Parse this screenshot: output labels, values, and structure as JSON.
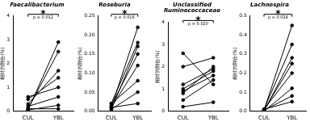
{
  "chart_data": [
    {
      "type": "line",
      "title": "Faecalibacterium",
      "y_label": "相対的割合(%)",
      "categories": [
        "CUL",
        "YBL"
      ],
      "series": [
        {
          "color": "#000000",
          "values": [
            0.05,
            2.9
          ]
        },
        {
          "color": "#000000",
          "values": [
            0.1,
            2.5
          ]
        },
        {
          "color": "#000000",
          "values": [
            0.3,
            1.7
          ]
        },
        {
          "color": "#000000",
          "values": [
            0.5,
            1.4
          ]
        },
        {
          "color": "#000000",
          "values": [
            0.6,
            1.0
          ]
        },
        {
          "color": "#000000",
          "values": [
            0.2,
            0.6
          ]
        },
        {
          "color": "#000000",
          "values": [
            0.05,
            0.25
          ]
        },
        {
          "color": "#000000",
          "values": [
            0.1,
            0.1
          ]
        }
      ],
      "ylim": [
        0,
        4
      ],
      "yticks": [
        0,
        1,
        2,
        3,
        4
      ],
      "grid": false,
      "marker": "circle",
      "annotations": [
        "*",
        "p = 0.012"
      ]
    },
    {
      "type": "line",
      "title": "Roseburia",
      "y_label": "相対的割合(%)",
      "categories": [
        "CUL",
        "YBL"
      ],
      "series": [
        {
          "color": "#000000",
          "values": [
            0.01,
            0.22
          ]
        },
        {
          "color": "#000000",
          "values": [
            0.02,
            0.18
          ]
        },
        {
          "color": "#000000",
          "values": [
            0.005,
            0.17
          ]
        },
        {
          "color": "#000000",
          "values": [
            0.015,
            0.15
          ]
        },
        {
          "color": "#000000",
          "values": [
            0.01,
            0.12
          ]
        },
        {
          "color": "#000000",
          "values": [
            0.02,
            0.08
          ]
        },
        {
          "color": "#000000",
          "values": [
            0.005,
            0.05
          ]
        },
        {
          "color": "#000000",
          "values": [
            0.01,
            0.02
          ]
        }
      ],
      "ylim": [
        0,
        0.25
      ],
      "yticks": [
        {
          "value": 0,
          "label": "0.00"
        },
        {
          "value": 0.05,
          "label": "0.05"
        },
        {
          "value": 0.1,
          "label": "0.10"
        },
        {
          "value": 0.15,
          "label": "0.15"
        },
        {
          "value": 0.2,
          "label": "0.20"
        },
        {
          "value": 0.25,
          "label": "0.25"
        }
      ],
      "grid": false,
      "marker": "circle",
      "annotations": [
        "*",
        "p = 0.016"
      ]
    },
    {
      "type": "line",
      "title": [
        "Unclassified",
        "Ruminococcaceae"
      ],
      "y_label": "相対的割合(%)",
      "categories": [
        "CUL",
        "YBL"
      ],
      "series": [
        {
          "color": "#000000",
          "values": [
            2.6,
            1.2
          ]
        },
        {
          "color": "#000000",
          "values": [
            2.0,
            2.4
          ]
        },
        {
          "color": "#000000",
          "values": [
            1.2,
            1.9
          ]
        },
        {
          "color": "#000000",
          "values": [
            1.0,
            1.8
          ]
        },
        {
          "color": "#000000",
          "values": [
            0.9,
            1.6
          ]
        },
        {
          "color": "#000000",
          "values": [
            0.8,
            2.0
          ]
        },
        {
          "color": "#000000",
          "values": [
            0.5,
            1.4
          ]
        },
        {
          "color": "#000000",
          "values": [
            0.2,
            0.4
          ]
        }
      ],
      "ylim": [
        0,
        4
      ],
      "yticks": [
        0,
        1,
        2,
        3,
        4
      ],
      "grid": false,
      "marker": "circle",
      "annotations": [
        "*",
        "p = 0.020"
      ]
    },
    {
      "type": "line",
      "title": "Lachnospira",
      "y_label": "相対的割合(%)",
      "categories": [
        "CUL",
        "YBL"
      ],
      "series": [
        {
          "color": "#000000",
          "values": [
            0.005,
            0.45
          ]
        },
        {
          "color": "#000000",
          "values": [
            0.01,
            0.35
          ]
        },
        {
          "color": "#000000",
          "values": [
            0.0,
            0.28
          ]
        },
        {
          "color": "#000000",
          "values": [
            0.005,
            0.25
          ]
        },
        {
          "color": "#000000",
          "values": [
            0.01,
            0.2
          ]
        },
        {
          "color": "#000000",
          "values": [
            0.0,
            0.12
          ]
        },
        {
          "color": "#000000",
          "values": [
            0.005,
            0.08
          ]
        },
        {
          "color": "#000000",
          "values": [
            0.01,
            0.05
          ]
        }
      ],
      "ylim": [
        0,
        0.5
      ],
      "yticks": [
        {
          "value": 0,
          "label": "0.0"
        },
        {
          "value": 0.1,
          "label": "0.1"
        },
        {
          "value": 0.2,
          "label": "0.2"
        },
        {
          "value": 0.3,
          "label": "0.3"
        },
        {
          "value": 0.4,
          "label": "0.4"
        },
        {
          "value": 0.5,
          "label": "0.5"
        }
      ],
      "grid": false,
      "marker": "circle",
      "annotations": [
        "*",
        "p = 0.024"
      ]
    }
  ]
}
